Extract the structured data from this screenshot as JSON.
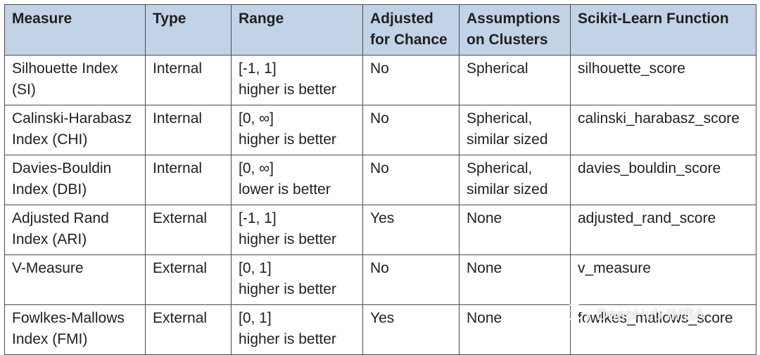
{
  "table": {
    "headers": [
      "Measure",
      "Type",
      "Range",
      "Adjusted\nfor Chance",
      "Assumptions\non Clusters",
      "Scikit-Learn Function"
    ],
    "rows": [
      [
        "Silhouette Index\n(SI)",
        "Internal",
        "[-1, 1]\nhigher is better",
        "No",
        "Spherical",
        "silhouette_score"
      ],
      [
        "Calinski-Harabasz\nIndex (CHI)",
        "Internal",
        "[0, ∞]\nhigher is better",
        "No",
        "Spherical,\nsimilar sized",
        "calinski_harabasz_score"
      ],
      [
        "Davies-Bouldin\nIndex (DBI)",
        "Internal",
        "[0, ∞]\nlower is better",
        "No",
        "Spherical,\nsimilar sized",
        "davies_bouldin_score"
      ],
      [
        "Adjusted Rand\nIndex (ARI)",
        "External",
        "[-1, 1]\nhigher is better",
        "Yes",
        "None",
        "adjusted_rand_score"
      ],
      [
        "V-Measure",
        "External",
        "[0, 1]\nhigher is better",
        "No",
        "None",
        "v_measure"
      ],
      [
        "Fowlkes-Mallows\nIndex (FMI)",
        "External",
        "[0, 1]\nhigher is better",
        "Yes",
        "None",
        "fowlkes_mallows_score"
      ]
    ]
  },
  "watermark": {
    "text": "DeepHub IMBA",
    "icon": "wechat-icon"
  },
  "colors": {
    "header_bg": "#c2d3e7",
    "border": "#4b4b4b",
    "text": "#1f1f1f"
  }
}
